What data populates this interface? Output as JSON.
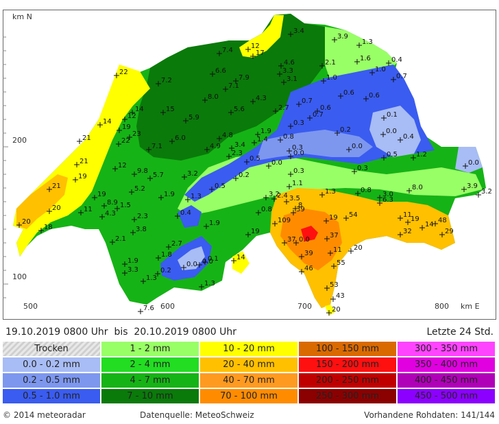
{
  "map": {
    "axis_n_label": "km N",
    "axis_e_label": "km E",
    "y_ticks": [
      {
        "label": "200"
      },
      {
        "label": "100"
      }
    ],
    "x_ticks": [
      {
        "label": "500"
      },
      {
        "label": "600"
      },
      {
        "label": "700"
      },
      {
        "label": "800"
      }
    ],
    "readings": [
      {
        "label": "7.4"
      },
      {
        "label": "12"
      },
      {
        "label": "17"
      },
      {
        "label": "3.4"
      },
      {
        "label": "3.9"
      },
      {
        "label": "1.3"
      },
      {
        "label": "4.6"
      },
      {
        "label": "2.1"
      },
      {
        "label": "1.6"
      },
      {
        "label": "0.4"
      },
      {
        "label": "22"
      },
      {
        "label": "6.6"
      },
      {
        "label": "3.3"
      },
      {
        "label": "1.0"
      },
      {
        "label": "0.7"
      },
      {
        "label": "7.2"
      },
      {
        "label": "7.9"
      },
      {
        "label": "3.1"
      },
      {
        "label": "1.0"
      },
      {
        "label": "7.1"
      },
      {
        "label": "0.6"
      },
      {
        "label": "0.6"
      },
      {
        "label": "8.0"
      },
      {
        "label": "4.3"
      },
      {
        "label": "0.7"
      },
      {
        "label": "14"
      },
      {
        "label": "15"
      },
      {
        "label": "5.6"
      },
      {
        "label": "2.7"
      },
      {
        "label": "0.6"
      },
      {
        "label": "12"
      },
      {
        "label": "5.9"
      },
      {
        "label": "0.7"
      },
      {
        "label": "0.1"
      },
      {
        "label": "14"
      },
      {
        "label": "19"
      },
      {
        "label": "0.3"
      },
      {
        "label": "23"
      },
      {
        "label": "4.8"
      },
      {
        "label": "1.9"
      },
      {
        "label": "0.2"
      },
      {
        "label": "0.0"
      },
      {
        "label": "21"
      },
      {
        "label": "22"
      },
      {
        "label": "6.0"
      },
      {
        "label": "1.4"
      },
      {
        "label": "0.8"
      },
      {
        "label": "0.4"
      },
      {
        "label": "7.1"
      },
      {
        "label": "4.9"
      },
      {
        "label": "3.4"
      },
      {
        "label": "0.3"
      },
      {
        "label": "2.3"
      },
      {
        "label": "0.0"
      },
      {
        "label": "1.2"
      },
      {
        "label": "21"
      },
      {
        "label": "0.5"
      },
      {
        "label": "0.0"
      },
      {
        "label": "0.0"
      },
      {
        "label": "0.5"
      },
      {
        "label": "0.0"
      },
      {
        "label": "12"
      },
      {
        "label": "9.8"
      },
      {
        "label": "3.2"
      },
      {
        "label": "0.2"
      },
      {
        "label": "0.3"
      },
      {
        "label": "0.3"
      },
      {
        "label": "19"
      },
      {
        "label": "5.7"
      },
      {
        "label": "1.1"
      },
      {
        "label": "21"
      },
      {
        "label": "5.2"
      },
      {
        "label": "0.5"
      },
      {
        "label": "3.9"
      },
      {
        "label": "0.8"
      },
      {
        "label": "1.3"
      },
      {
        "label": "3.2"
      },
      {
        "label": "19"
      },
      {
        "label": "1.9"
      },
      {
        "label": "3.2"
      },
      {
        "label": "2.4"
      },
      {
        "label": "3.0"
      },
      {
        "label": "3.5"
      },
      {
        "label": "6.3"
      },
      {
        "label": "1.5"
      },
      {
        "label": "1.3"
      },
      {
        "label": "8"
      },
      {
        "label": "8.0"
      },
      {
        "label": "20"
      },
      {
        "label": "8.9"
      },
      {
        "label": "0.4"
      },
      {
        "label": "0.8"
      },
      {
        "label": "39"
      },
      {
        "label": "11"
      },
      {
        "label": "19"
      },
      {
        "label": "11"
      },
      {
        "label": "4.3"
      },
      {
        "label": "2.3"
      },
      {
        "label": "54"
      },
      {
        "label": "20"
      },
      {
        "label": "19"
      },
      {
        "label": "18"
      },
      {
        "label": "3.8"
      },
      {
        "label": "1.9"
      },
      {
        "label": "109"
      },
      {
        "label": "48"
      },
      {
        "label": "14"
      },
      {
        "label": "19"
      },
      {
        "label": "37"
      },
      {
        "label": "32"
      },
      {
        "label": "29"
      },
      {
        "label": "2.1"
      },
      {
        "label": "2.7"
      },
      {
        "label": "0.0"
      },
      {
        "label": "37"
      },
      {
        "label": "11"
      },
      {
        "label": "20"
      },
      {
        "label": "1.8"
      },
      {
        "label": "0.1"
      },
      {
        "label": "39"
      },
      {
        "label": "14"
      },
      {
        "label": "1.9"
      },
      {
        "label": "0.0"
      },
      {
        "label": "55"
      },
      {
        "label": "3.3"
      },
      {
        "label": "0.2"
      },
      {
        "label": "46"
      },
      {
        "label": "1.3"
      },
      {
        "label": "1.3"
      },
      {
        "label": "53"
      },
      {
        "label": "43"
      },
      {
        "label": "7.6"
      },
      {
        "label": "20"
      },
      {
        "label": "0.0"
      }
    ]
  },
  "period": "19.10.2019 0800 Uhr  bis  20.10.2019 0800 Uhr",
  "time_window": "Letzte 24 Std.",
  "legend": [
    [
      {
        "label": "Trocken",
        "color": "#ffffff"
      },
      {
        "label": "1 - 2 mm",
        "color": "#99ff66"
      },
      {
        "label": "10 - 20 mm",
        "color": "#ffff00"
      },
      {
        "label": "100 - 150 mm",
        "color": "#d96a00"
      },
      {
        "label": "300 - 350 mm",
        "color": "#ff44ff"
      }
    ],
    [
      {
        "label": "0.0 - 0.2 mm",
        "color": "#a8bcf5"
      },
      {
        "label": "2 - 4 mm",
        "color": "#22dd22"
      },
      {
        "label": "20 - 40 mm",
        "color": "#ffc000"
      },
      {
        "label": "150 - 200 mm",
        "color": "#ff1010"
      },
      {
        "label": "350 - 400 mm",
        "color": "#e000e0"
      }
    ],
    [
      {
        "label": "0.2 - 0.5 mm",
        "color": "#7d97ef"
      },
      {
        "label": "4 - 7 mm",
        "color": "#16b316"
      },
      {
        "label": "40 - 70 mm",
        "color": "#ff9a20"
      },
      {
        "label": "200 - 250 mm",
        "color": "#c00000"
      },
      {
        "label": "400 - 450 mm",
        "color": "#b000b8"
      }
    ],
    [
      {
        "label": "0.5 - 1.0 mm",
        "color": "#3a5cf0"
      },
      {
        "label": "7 - 10 mm",
        "color": "#0a7a0a"
      },
      {
        "label": "70 - 100 mm",
        "color": "#ff8c00"
      },
      {
        "label": "250 - 300 mm",
        "color": "#8b0000"
      },
      {
        "label": "450 - 500 mm",
        "color": "#8c00ff"
      }
    ]
  ],
  "footer": {
    "copyright": "© 2014  meteoradar",
    "source": "Datenquelle: MeteoSchweiz",
    "raw_data": "Vorhandene Rohdaten: 141/144"
  }
}
